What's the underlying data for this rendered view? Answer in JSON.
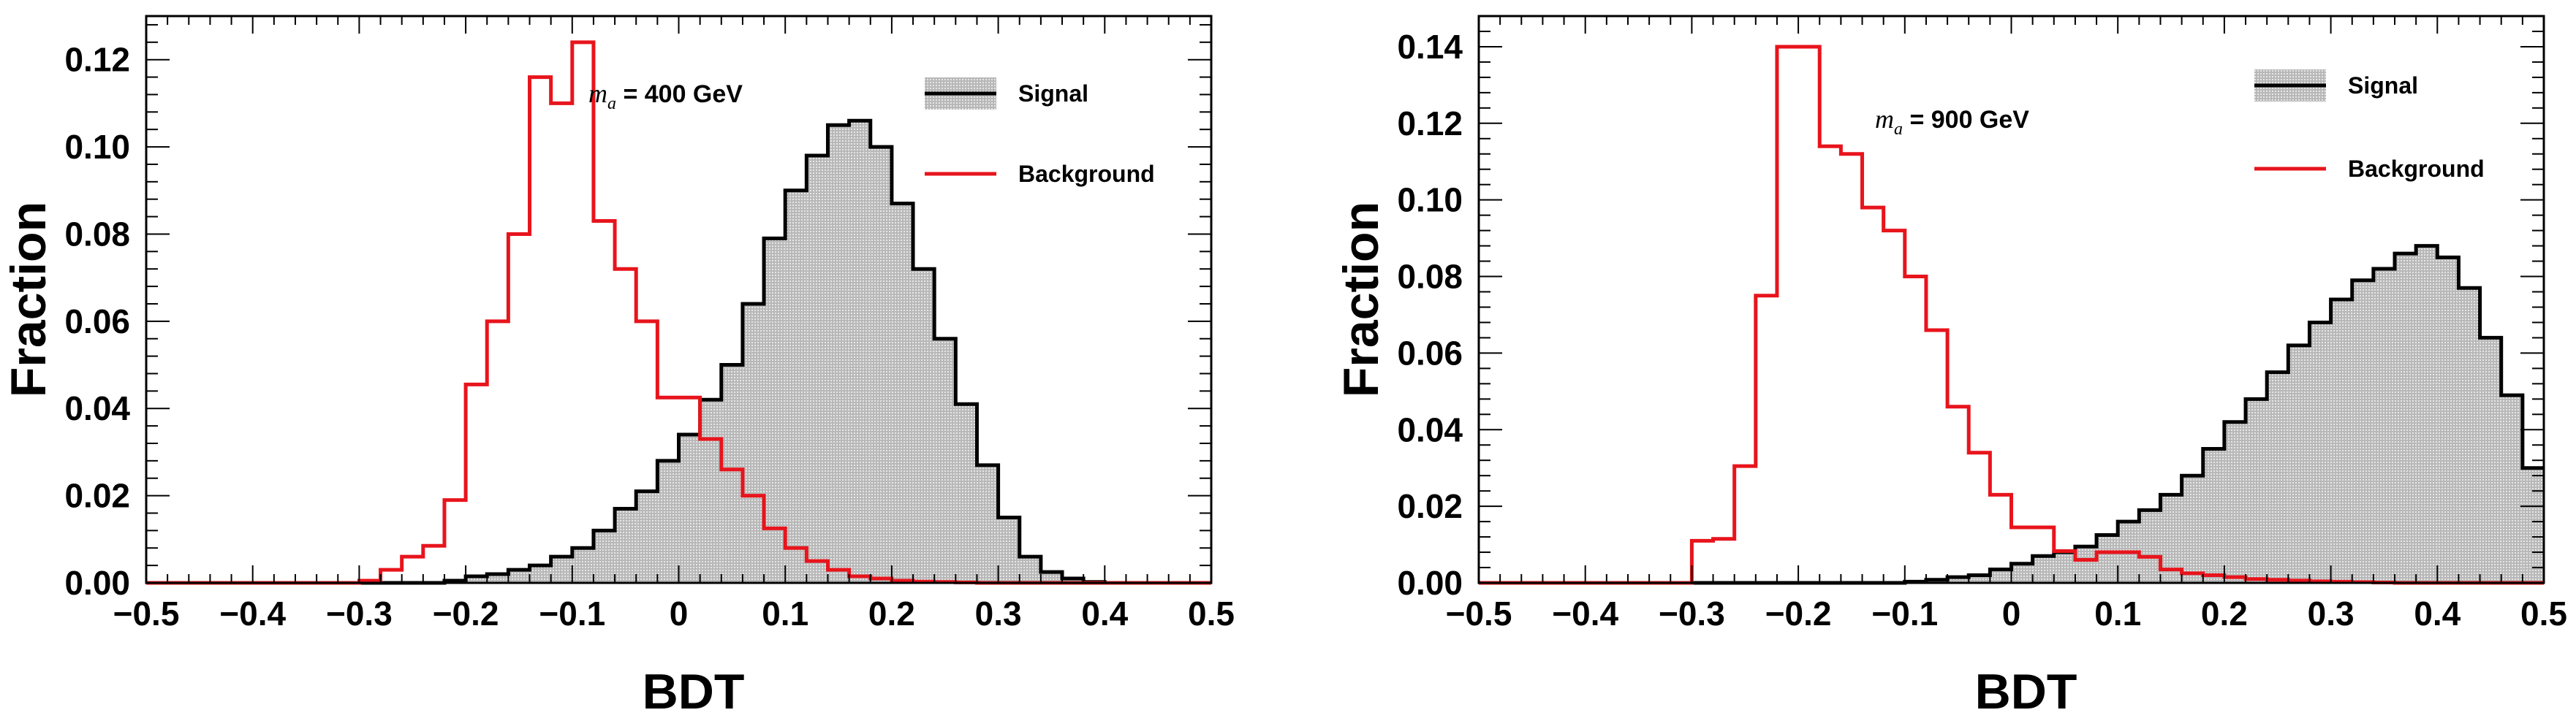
{
  "colors": {
    "signal_line": "#000000",
    "signal_fill": "#c0c0c0",
    "background_line": "#e8141c"
  },
  "chart_data": [
    {
      "type": "histogram",
      "xlabel": "BDT",
      "ylabel": "Fraction",
      "xlim": [
        -0.5,
        0.5
      ],
      "ylim": [
        0,
        0.13
      ],
      "xticks": [
        "−0.5",
        "−0.4",
        "−0.3",
        "−0.2",
        "−0.1",
        "0",
        "0.1",
        "0.2",
        "0.3",
        "0.4",
        "0.5"
      ],
      "yticks": [
        "0.00",
        "0.02",
        "0.04",
        "0.06",
        "0.08",
        "0.10",
        "0.12"
      ],
      "annotation": {
        "symbol": "m",
        "subscript": "a",
        "text": " = 400 GeV"
      },
      "legend": {
        "signal": "Signal",
        "background": "Background",
        "position": "top-right"
      },
      "bins": {
        "x_start": -0.5,
        "width": 0.02
      },
      "series": [
        {
          "name": "Signal",
          "values": [
            0,
            0,
            0,
            0,
            0,
            0,
            0,
            0,
            0,
            0,
            0,
            0,
            0,
            0,
            0.0005,
            0.0015,
            0.002,
            0.003,
            0.004,
            0.006,
            0.008,
            0.012,
            0.017,
            0.021,
            0.028,
            0.034,
            0.042,
            0.05,
            0.064,
            0.079,
            0.09,
            0.098,
            0.105,
            0.106,
            0.1,
            0.087,
            0.072,
            0.056,
            0.041,
            0.027,
            0.015,
            0.006,
            0.0025,
            0.001,
            0.0002,
            0,
            0,
            0,
            0,
            0
          ]
        },
        {
          "name": "Background",
          "values": [
            0,
            0,
            0,
            0,
            0,
            0,
            0,
            0,
            0,
            0,
            0.0005,
            0.003,
            0.006,
            0.0085,
            0.019,
            0.0455,
            0.06,
            0.08,
            0.116,
            0.11,
            0.124,
            0.083,
            0.072,
            0.06,
            0.0425,
            0.0425,
            0.033,
            0.026,
            0.02,
            0.0125,
            0.008,
            0.005,
            0.003,
            0.0015,
            0.001,
            0.0005,
            0.0003,
            0.0002,
            0.0001,
            0,
            0,
            0,
            0,
            0,
            0,
            0,
            0,
            0,
            0,
            0
          ]
        }
      ]
    },
    {
      "type": "histogram",
      "xlabel": "BDT",
      "ylabel": "Fraction",
      "xlim": [
        -0.5,
        0.5
      ],
      "ylim": [
        0,
        0.148
      ],
      "xticks": [
        "−0.5",
        "−0.4",
        "−0.3",
        "−0.2",
        "−0.1",
        "0",
        "0.1",
        "0.2",
        "0.3",
        "0.4",
        "0.5"
      ],
      "yticks": [
        "0.00",
        "0.02",
        "0.04",
        "0.06",
        "0.08",
        "0.10",
        "0.12",
        "0.14"
      ],
      "annotation": {
        "symbol": "m",
        "subscript": "a",
        "text": " = 900 GeV"
      },
      "legend": {
        "signal": "Signal",
        "background": "Background",
        "position": "top-right"
      },
      "bins": {
        "x_start": -0.5,
        "width": 0.02
      },
      "series": [
        {
          "name": "Signal",
          "values": [
            0,
            0,
            0,
            0,
            0,
            0,
            0,
            0,
            0,
            0,
            0,
            0,
            0,
            0,
            0,
            0,
            0,
            0,
            0,
            0,
            0.0003,
            0.0008,
            0.0015,
            0.002,
            0.0035,
            0.005,
            0.007,
            0.008,
            0.0095,
            0.0125,
            0.016,
            0.019,
            0.023,
            0.028,
            0.035,
            0.042,
            0.048,
            0.055,
            0.062,
            0.068,
            0.074,
            0.079,
            0.082,
            0.086,
            0.088,
            0.085,
            0.077,
            0.064,
            0.049,
            0.03
          ]
        },
        {
          "name": "Background",
          "values": [
            0,
            0,
            0,
            0,
            0,
            0,
            0,
            0,
            0,
            0,
            0.011,
            0.0115,
            0.0305,
            0.075,
            0.14,
            0.14,
            0.114,
            0.112,
            0.098,
            0.092,
            0.08,
            0.066,
            0.046,
            0.034,
            0.023,
            0.0145,
            0.0145,
            0.0083,
            0.006,
            0.008,
            0.008,
            0.0068,
            0.0035,
            0.0025,
            0.002,
            0.0015,
            0.001,
            0.0008,
            0.0006,
            0.0004,
            0.0003,
            0.0002,
            0.0001,
            0,
            0,
            0,
            0,
            0,
            0,
            0
          ]
        }
      ]
    }
  ]
}
